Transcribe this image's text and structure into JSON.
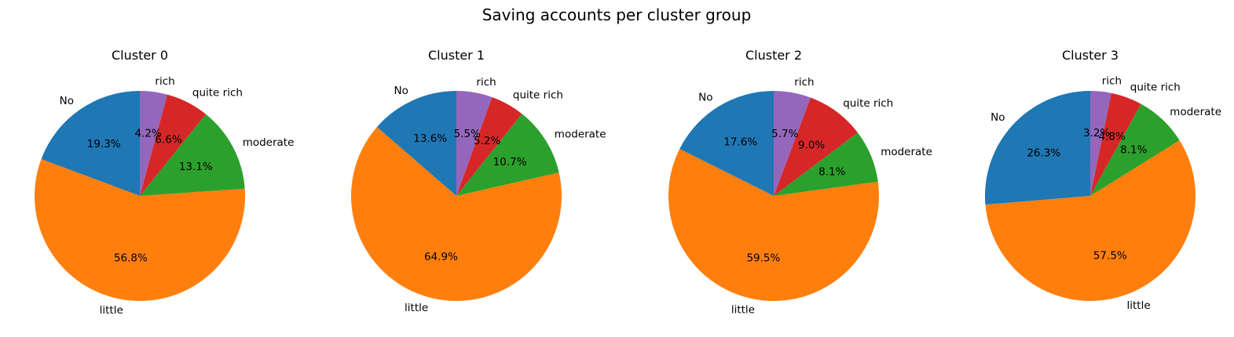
{
  "chart_data": {
    "type": "pie",
    "title": "Saving accounts per cluster group",
    "labels": [
      "No",
      "little",
      "moderate",
      "quite rich",
      "rich"
    ],
    "colors": [
      "#1f77b4",
      "#ff7f0e",
      "#2ca02c",
      "#d62728",
      "#9467bd"
    ],
    "start_angle": 90,
    "direction": "counterclockwise",
    "charts": [
      {
        "title": "Cluster 0",
        "values": [
          19.3,
          56.8,
          13.1,
          6.6,
          4.2
        ]
      },
      {
        "title": "Cluster 1",
        "values": [
          13.6,
          64.9,
          10.7,
          5.2,
          5.5
        ]
      },
      {
        "title": "Cluster 2",
        "values": [
          17.6,
          59.5,
          8.1,
          9.0,
          5.7
        ]
      },
      {
        "title": "Cluster 3",
        "values": [
          26.3,
          57.5,
          8.1,
          4.8,
          3.2
        ]
      }
    ]
  }
}
